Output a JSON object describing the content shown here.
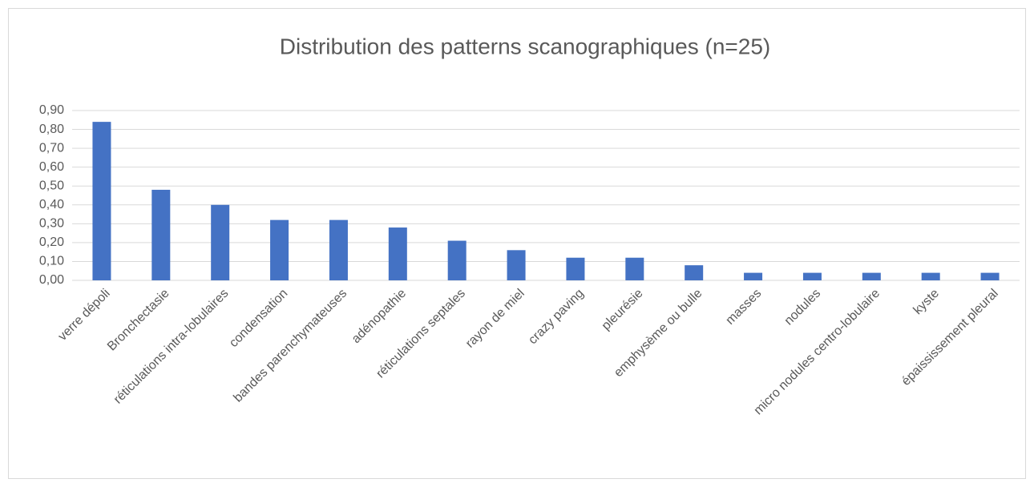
{
  "chart_data": {
    "type": "bar",
    "title": "Distribution des patterns scanographiques (n=25)",
    "categories": [
      "verre dépoli",
      "Bronchectasie",
      "réticulations intra-lobulaires",
      "condensation",
      "bandes parenchymateuses",
      "adénopathie",
      "réticulations septales",
      "rayon de miel",
      "crazy paving",
      "pleurésie",
      "emphysème ou bulle",
      "masses",
      "nodules",
      "micro nodules centro-lobulaire",
      "kyste",
      "épaississement pleural"
    ],
    "values": [
      0.84,
      0.48,
      0.4,
      0.32,
      0.32,
      0.28,
      0.21,
      0.16,
      0.12,
      0.12,
      0.08,
      0.04,
      0.04,
      0.04,
      0.04,
      0.04
    ],
    "color": "#4472c4",
    "ylim": [
      0,
      0.9
    ],
    "yticks": [
      {
        "value": 0,
        "label": "0,00"
      },
      {
        "value": 0.1,
        "label": "0,10"
      },
      {
        "value": 0.2,
        "label": "0,20"
      },
      {
        "value": 0.3,
        "label": "0,30"
      },
      {
        "value": 0.4,
        "label": "0,40"
      },
      {
        "value": 0.5,
        "label": "0,50"
      },
      {
        "value": 0.6,
        "label": "0,60"
      },
      {
        "value": 0.7,
        "label": "0,70"
      },
      {
        "value": 0.8,
        "label": "0,80"
      },
      {
        "value": 0.9,
        "label": "0,90"
      }
    ],
    "grid": true
  }
}
